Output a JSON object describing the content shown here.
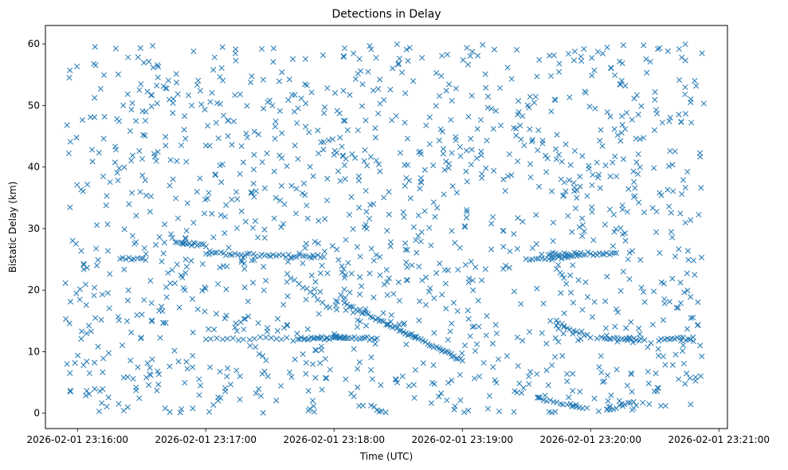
{
  "chart_data": {
    "type": "scatter",
    "title": "Detections in Delay",
    "xlabel": "Time (UTC)",
    "ylabel": "Bistatic Delay (km)",
    "marker": "x",
    "color": "#1f77b4",
    "grid": false,
    "legend": "none",
    "xlim": [
      "2026-02-01 23:15:45",
      "2026-02-01 23:21:04"
    ],
    "ylim": [
      -2.5,
      63
    ],
    "xticks": [
      "2026-02-01 23:16:00",
      "2026-02-01 23:17:00",
      "2026-02-01 23:18:00",
      "2026-02-01 23:19:00",
      "2026-02-01 23:20:00",
      "2026-02-01 23:21:00"
    ],
    "yticks": [
      0,
      10,
      20,
      30,
      40,
      50,
      60
    ],
    "time_range": [
      "2026-02-01 23:15:54",
      "2026-02-01 23:20:53"
    ],
    "delay_range": [
      0,
      60
    ],
    "background_count": 1350,
    "tracks": [
      {
        "x": [
          "2026-02-01 23:16:20",
          "2026-02-01 23:16:32"
        ],
        "y": [
          25.2,
          25.1
        ],
        "n": 10
      },
      {
        "x": [
          "2026-02-01 23:16:46",
          "2026-02-01 23:17:00"
        ],
        "y": [
          27.7,
          27.2
        ],
        "n": 14
      },
      {
        "x": [
          "2026-02-01 23:17:00",
          "2026-02-01 23:17:40"
        ],
        "y": [
          26.0,
          25.5
        ],
        "n": 30
      },
      {
        "x": [
          "2026-02-01 23:17:40",
          "2026-02-01 23:17:55"
        ],
        "y": [
          25.4,
          25.5
        ],
        "n": 12
      },
      {
        "x": [
          "2026-02-01 23:17:43",
          "2026-02-01 23:18:05"
        ],
        "y": [
          12.1,
          12.3
        ],
        "n": 26
      },
      {
        "x": [
          "2026-02-01 23:18:00",
          "2026-02-01 23:18:20"
        ],
        "y": [
          12.3,
          12.1
        ],
        "n": 18
      },
      {
        "x": [
          "2026-02-01 23:17:38",
          "2026-02-01 23:17:58"
        ],
        "y": [
          22.5,
          17.0
        ],
        "n": 12
      },
      {
        "x": [
          "2026-02-01 23:18:05",
          "2026-02-01 23:19:00"
        ],
        "y": [
          17.8,
          8.6
        ],
        "n": 55
      },
      {
        "x": [
          "2026-02-01 23:19:30",
          "2026-02-01 23:19:55"
        ],
        "y": [
          25.0,
          25.4
        ],
        "n": 18
      },
      {
        "x": [
          "2026-02-01 23:19:40",
          "2026-02-01 23:20:12"
        ],
        "y": [
          25.9,
          25.9
        ],
        "n": 30
      },
      {
        "x": [
          "2026-02-01 23:19:45",
          "2026-02-01 23:20:00"
        ],
        "y": [
          14.5,
          12.5
        ],
        "n": 12
      },
      {
        "x": [
          "2026-02-01 23:20:05",
          "2026-02-01 23:20:25"
        ],
        "y": [
          12.2,
          12.0
        ],
        "n": 18
      },
      {
        "x": [
          "2026-02-01 23:20:32",
          "2026-02-01 23:20:48"
        ],
        "y": [
          12.0,
          12.1
        ],
        "n": 14
      },
      {
        "x": [
          "2026-02-01 23:19:35",
          "2026-02-01 23:19:58"
        ],
        "y": [
          2.5,
          0.8
        ],
        "n": 16
      },
      {
        "x": [
          "2026-02-01 23:20:08",
          "2026-02-01 23:20:20"
        ],
        "y": [
          0.5,
          2.0
        ],
        "n": 10
      },
      {
        "x": [
          "2026-02-01 23:17:00",
          "2026-02-01 23:17:38"
        ],
        "y": [
          12.0,
          12.2
        ],
        "n": 16
      }
    ]
  }
}
